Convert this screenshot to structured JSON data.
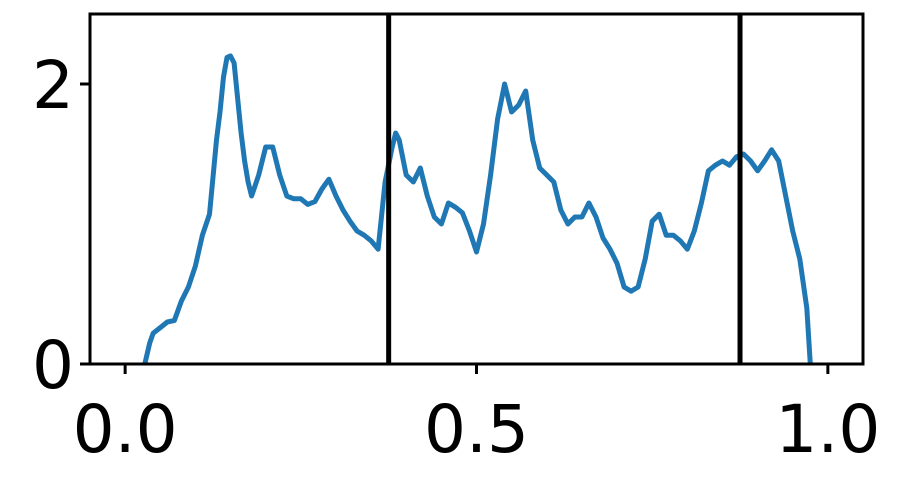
{
  "chart_data": {
    "type": "line",
    "title": "",
    "xlabel": "",
    "ylabel": "",
    "xlim": [
      -0.05,
      1.05
    ],
    "ylim": [
      0,
      2.5
    ],
    "x_ticks": [
      0.0,
      0.5,
      1.0
    ],
    "x_tick_labels": [
      "0.0",
      "0.5",
      "1.0"
    ],
    "y_ticks": [
      0,
      2
    ],
    "y_tick_labels": [
      "0",
      "2"
    ],
    "grid": false,
    "vertical_lines": [
      0.375,
      0.875
    ],
    "line_color": "#1f77b4",
    "vline_color": "#000000",
    "series": [
      {
        "x": [
          0.028,
          0.035,
          0.04,
          0.05,
          0.06,
          0.07,
          0.08,
          0.09,
          0.1,
          0.11,
          0.12,
          0.13,
          0.135,
          0.14,
          0.145,
          0.15,
          0.155,
          0.16,
          0.165,
          0.17,
          0.175,
          0.18,
          0.19,
          0.2,
          0.21,
          0.22,
          0.23,
          0.24,
          0.25,
          0.26,
          0.27,
          0.28,
          0.29,
          0.3,
          0.31,
          0.32,
          0.33,
          0.34,
          0.35,
          0.36,
          0.37,
          0.38,
          0.385,
          0.39,
          0.4,
          0.41,
          0.42,
          0.43,
          0.44,
          0.45,
          0.46,
          0.47,
          0.48,
          0.49,
          0.5,
          0.51,
          0.52,
          0.53,
          0.54,
          0.55,
          0.56,
          0.57,
          0.58,
          0.59,
          0.6,
          0.61,
          0.62,
          0.63,
          0.64,
          0.65,
          0.66,
          0.67,
          0.68,
          0.69,
          0.7,
          0.71,
          0.72,
          0.73,
          0.74,
          0.75,
          0.76,
          0.77,
          0.78,
          0.79,
          0.8,
          0.81,
          0.82,
          0.83,
          0.84,
          0.85,
          0.86,
          0.87,
          0.88,
          0.89,
          0.9,
          0.91,
          0.92,
          0.93,
          0.94,
          0.95,
          0.96,
          0.97,
          0.975
        ],
        "y": [
          0.0,
          0.15,
          0.22,
          0.26,
          0.3,
          0.31,
          0.45,
          0.55,
          0.7,
          0.92,
          1.07,
          1.6,
          1.8,
          2.05,
          2.19,
          2.2,
          2.15,
          1.9,
          1.65,
          1.45,
          1.3,
          1.2,
          1.35,
          1.55,
          1.55,
          1.35,
          1.2,
          1.18,
          1.18,
          1.14,
          1.16,
          1.25,
          1.32,
          1.2,
          1.1,
          1.02,
          0.95,
          0.92,
          0.88,
          0.82,
          1.3,
          1.55,
          1.65,
          1.6,
          1.35,
          1.3,
          1.4,
          1.2,
          1.05,
          1.0,
          1.15,
          1.12,
          1.08,
          0.95,
          0.8,
          1.0,
          1.35,
          1.75,
          2.0,
          1.8,
          1.85,
          1.95,
          1.6,
          1.4,
          1.35,
          1.3,
          1.1,
          1.0,
          1.05,
          1.05,
          1.15,
          1.05,
          0.9,
          0.82,
          0.72,
          0.55,
          0.52,
          0.55,
          0.75,
          1.02,
          1.07,
          0.92,
          0.92,
          0.88,
          0.82,
          0.95,
          1.15,
          1.38,
          1.42,
          1.45,
          1.42,
          1.48,
          1.5,
          1.45,
          1.38,
          1.45,
          1.53,
          1.45,
          1.2,
          0.95,
          0.75,
          0.4,
          0.0
        ]
      }
    ]
  }
}
